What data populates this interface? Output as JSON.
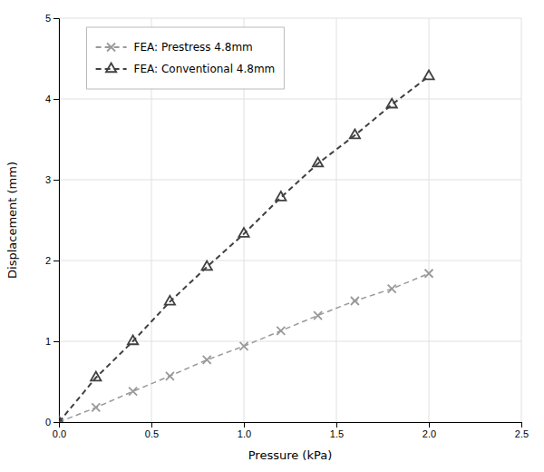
{
  "chart_data": {
    "type": "line",
    "xlabel": "Pressure (kPa)",
    "ylabel": "Displacement (mm)",
    "x": [
      0,
      0.2,
      0.4,
      0.6,
      0.8,
      1.0,
      1.2,
      1.4,
      1.6,
      1.8,
      2.0
    ],
    "series": [
      {
        "name": "FEA: Prestress 4.8mm",
        "color": "#999999",
        "marker": "x",
        "line_style": "dashed",
        "values": [
          0,
          0.18,
          0.38,
          0.57,
          0.77,
          0.94,
          1.13,
          1.32,
          1.5,
          1.65,
          1.84
        ]
      },
      {
        "name": "FEA: Conventional 4.8mm",
        "color": "#404040",
        "marker": "triangle",
        "line_style": "dashed",
        "values": [
          0,
          0.55,
          1.0,
          1.49,
          1.92,
          2.33,
          2.78,
          3.2,
          3.55,
          3.93,
          4.28
        ]
      }
    ],
    "xlim": [
      0,
      2.5
    ],
    "ylim": [
      0,
      5
    ],
    "xticks": [
      {
        "value": 0,
        "label": "0.0"
      },
      0.5,
      {
        "value": 1.0,
        "label": "1.0"
      },
      1.5,
      {
        "value": 2.0,
        "label": "2.0"
      },
      2.5
    ],
    "yticks": [
      0,
      1,
      2,
      3,
      4,
      5
    ],
    "grid": true,
    "legend": "upper left"
  }
}
